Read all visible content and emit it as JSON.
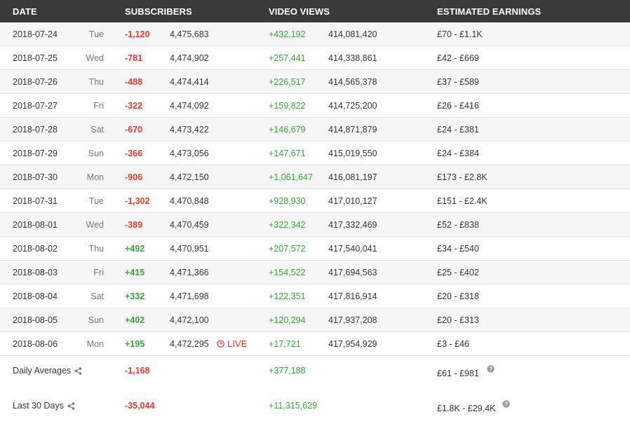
{
  "header": {
    "date": "DATE",
    "subscribers": "SUBSCRIBERS",
    "video_views": "VIDEO VIEWS",
    "earnings": "ESTIMATED EARNINGS"
  },
  "rows": [
    {
      "date": "2018-07-24",
      "day": "Tue",
      "sub_delta": "-1,120",
      "sub_total": "4,475,683",
      "view_delta": "+432,192",
      "view_total": "414,081,420",
      "earnings": "£70  -  £1.1K",
      "sub_sign": "neg"
    },
    {
      "date": "2018-07-25",
      "day": "Wed",
      "sub_delta": "-781",
      "sub_total": "4,474,902",
      "view_delta": "+257,441",
      "view_total": "414,338,861",
      "earnings": "£42  -  £669",
      "sub_sign": "neg"
    },
    {
      "date": "2018-07-26",
      "day": "Thu",
      "sub_delta": "-488",
      "sub_total": "4,474,414",
      "view_delta": "+226,517",
      "view_total": "414,565,378",
      "earnings": "£37  -  £589",
      "sub_sign": "neg"
    },
    {
      "date": "2018-07-27",
      "day": "Fri",
      "sub_delta": "-322",
      "sub_total": "4,474,092",
      "view_delta": "+159,822",
      "view_total": "414,725,200",
      "earnings": "£26  -  £416",
      "sub_sign": "neg"
    },
    {
      "date": "2018-07-28",
      "day": "Sat",
      "sub_delta": "-670",
      "sub_total": "4,473,422",
      "view_delta": "+146,679",
      "view_total": "414,871,879",
      "earnings": "£24  -  £381",
      "sub_sign": "neg"
    },
    {
      "date": "2018-07-29",
      "day": "Sun",
      "sub_delta": "-366",
      "sub_total": "4,473,056",
      "view_delta": "+147,671",
      "view_total": "415,019,550",
      "earnings": "£24  -  £384",
      "sub_sign": "neg"
    },
    {
      "date": "2018-07-30",
      "day": "Mon",
      "sub_delta": "-906",
      "sub_total": "4,472,150",
      "view_delta": "+1,061,647",
      "view_total": "416,081,197",
      "earnings": "£173  -  £2.8K",
      "sub_sign": "neg"
    },
    {
      "date": "2018-07-31",
      "day": "Tue",
      "sub_delta": "-1,302",
      "sub_total": "4,470,848",
      "view_delta": "+928,930",
      "view_total": "417,010,127",
      "earnings": "£151  -  £2.4K",
      "sub_sign": "neg"
    },
    {
      "date": "2018-08-01",
      "day": "Wed",
      "sub_delta": "-389",
      "sub_total": "4,470,459",
      "view_delta": "+322,342",
      "view_total": "417,332,469",
      "earnings": "£52  -  £838",
      "sub_sign": "neg"
    },
    {
      "date": "2018-08-02",
      "day": "Thu",
      "sub_delta": "+492",
      "sub_total": "4,470,951",
      "view_delta": "+207,572",
      "view_total": "417,540,041",
      "earnings": "£34  -  £540",
      "sub_sign": "pos"
    },
    {
      "date": "2018-08-03",
      "day": "Fri",
      "sub_delta": "+415",
      "sub_total": "4,471,366",
      "view_delta": "+154,522",
      "view_total": "417,694,563",
      "earnings": "£25  -  £402",
      "sub_sign": "pos"
    },
    {
      "date": "2018-08-04",
      "day": "Sat",
      "sub_delta": "+332",
      "sub_total": "4,471,698",
      "view_delta": "+122,351",
      "view_total": "417,816,914",
      "earnings": "£20  -  £318",
      "sub_sign": "pos"
    },
    {
      "date": "2018-08-05",
      "day": "Sun",
      "sub_delta": "+402",
      "sub_total": "4,472,100",
      "view_delta": "+120,294",
      "view_total": "417,937,208",
      "earnings": "£20  -  £313",
      "sub_sign": "pos"
    },
    {
      "date": "2018-08-06",
      "day": "Mon",
      "sub_delta": "+195",
      "sub_total": "4,472,295",
      "view_delta": "+17,721",
      "view_total": "417,954,929",
      "earnings": "£3  -  £46",
      "sub_sign": "pos",
      "live": "LIVE"
    }
  ],
  "summary": {
    "daily": {
      "label": "Daily Averages",
      "subs": "-1,168",
      "views": "+377,188",
      "earnings": "£61  -  £981"
    },
    "last30": {
      "label": "Last 30 Days",
      "subs": "-35,044",
      "views": "+11,315,629",
      "earnings": "£1.8K  -  £29.4K"
    }
  },
  "colors": {
    "negative": "#e23b2b",
    "positive": "#3aa33a",
    "header_bg": "#3a3a3a"
  },
  "icons": {
    "live": "clock-icon",
    "share": "share-icon",
    "help": "help-icon"
  }
}
